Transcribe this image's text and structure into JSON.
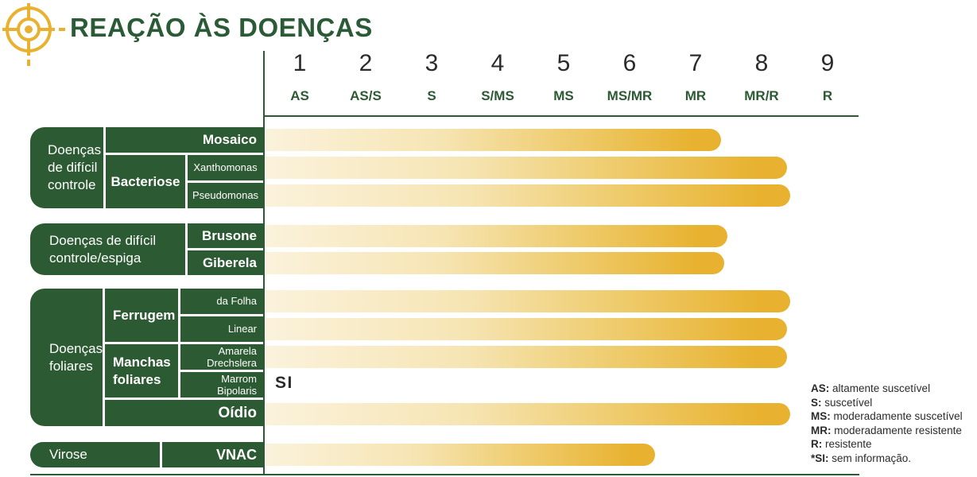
{
  "title": "REAÇÃO ÀS DOENÇAS",
  "colors": {
    "green": "#2C5A33",
    "title-green": "#2A5B36",
    "gold": "#E8B230",
    "bar-light": "#FBF2DC",
    "ink": "#2B2B2B"
  },
  "scale": {
    "ticks": [
      {
        "num": "1",
        "label": "AS"
      },
      {
        "num": "2",
        "label": "AS/S"
      },
      {
        "num": "3",
        "label": "S"
      },
      {
        "num": "4",
        "label": "S/MS"
      },
      {
        "num": "5",
        "label": "MS"
      },
      {
        "num": "6",
        "label": "MS/MR"
      },
      {
        "num": "7",
        "label": "MR"
      },
      {
        "num": "8",
        "label": "MR/R"
      },
      {
        "num": "9",
        "label": "R"
      }
    ]
  },
  "groups": {
    "g1": {
      "label": "Doenças de difícil controle",
      "lines": {
        "l1": "Doenças",
        "l2": "de difícil",
        "l3": "controle"
      },
      "mosaico": "Mosaico",
      "bacteriose": "Bacteriose",
      "xanthomonas": "Xanthomonas",
      "pseudomonas": "Pseudomonas"
    },
    "g2": {
      "label": "Doenças de difícil controle/espiga",
      "lines": {
        "l1": "Doenças de difícil",
        "l2": "controle/espiga"
      },
      "brusone": "Brusone",
      "giberela": "Giberela"
    },
    "g3": {
      "label": "Doenças foliares",
      "lines": {
        "l1": "Doenças",
        "l2": "foliares"
      },
      "ferrugem": "Ferrugem",
      "da_folha": "da Folha",
      "linear": "Linear",
      "manchas_l1": "Manchas",
      "manchas_l2": "foliares",
      "amarela_l1": "Amarela",
      "amarela_l2": "Drechslera",
      "marrom_l1": "Marrom",
      "marrom_l2": "Bipolaris",
      "oidio": "Oídio"
    },
    "g4": {
      "label": "Virose",
      "vnac": "VNAC"
    }
  },
  "si_annotation": "SI",
  "legend": [
    {
      "term": "AS:",
      "desc": " altamente suscetível"
    },
    {
      "term": "S:",
      "desc": " suscetível"
    },
    {
      "term": "MS:",
      "desc": " moderadamente suscetível"
    },
    {
      "term": "MR:",
      "desc": " moderadamente resistente"
    },
    {
      "term": "R:",
      "desc": " resistente"
    },
    {
      "term": "*SI:",
      "desc": " sem informação."
    }
  ],
  "chart_data": {
    "type": "bar",
    "orientation": "horizontal",
    "title": "REAÇÃO ÀS DOENÇAS",
    "x_axis": {
      "range": [
        0.5,
        9.5
      ],
      "ticks": [
        1,
        2,
        3,
        4,
        5,
        6,
        7,
        8,
        9
      ],
      "tick_labels": [
        "AS",
        "AS/S",
        "S",
        "S/MS",
        "MS",
        "MS/MR",
        "MR",
        "MR/R",
        "R"
      ],
      "grid": false
    },
    "categories": [
      "Mosaico",
      "Bacteriose — Xanthomonas",
      "Bacteriose — Pseudomonas",
      "Brusone",
      "Giberela",
      "Ferrugem da Folha",
      "Ferrugem Linear",
      "Mancha foliar Amarela Drechslera",
      "Mancha foliar Marrom Bipolaris",
      "Oídio",
      "Virose VNAC"
    ],
    "row_groups": [
      "Doenças de difícil controle",
      "Doenças de difícil controle",
      "Doenças de difícil controle",
      "Doenças de difícil controle/espiga",
      "Doenças de difícil controle/espiga",
      "Doenças foliares",
      "Doenças foliares",
      "Doenças foliares",
      "Doenças foliares",
      "Doenças foliares",
      "Virose"
    ],
    "values": [
      7.4,
      8.4,
      8.45,
      7.5,
      7.45,
      8.45,
      8.4,
      8.4,
      null,
      8.45,
      6.4
    ],
    "no_data_label": "SI",
    "bar_gradient": [
      "#FBF2DC",
      "#E8B230"
    ],
    "legend_position": "bottom-right",
    "legend_entries": [
      "AS: altamente suscetível",
      "S: suscetível",
      "MS: moderadamente suscetível",
      "MR: moderadamente resistente",
      "R: resistente",
      "*SI: sem informação."
    ]
  }
}
